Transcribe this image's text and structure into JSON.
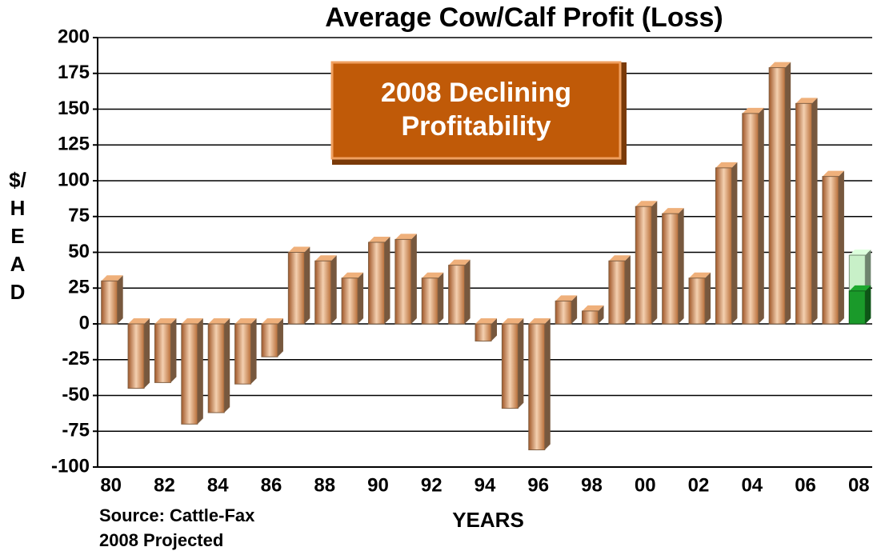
{
  "chart_data": {
    "type": "bar",
    "title": "Average Cow/Calf Profit (Loss)",
    "y_label": "$/HEAD",
    "x_label": "YEARS",
    "annotation": "2008 Declining Profitability",
    "notes": [
      "Source:  Cattle-Fax",
      "2008 Projected"
    ],
    "categories": [
      "80",
      null,
      "82",
      null,
      "84",
      null,
      "86",
      null,
      "88",
      null,
      "90",
      null,
      "92",
      null,
      "94",
      null,
      "96",
      null,
      "98",
      null,
      "00",
      null,
      "02",
      null,
      "04",
      null,
      "06",
      null,
      "08"
    ],
    "series": [
      {
        "color": "#d9a070",
        "values": [
          30,
          -45,
          -41,
          -70,
          -62,
          -42,
          -23,
          50,
          44,
          32,
          57,
          59,
          32,
          41,
          -12,
          -59,
          -88,
          16,
          9,
          44,
          82,
          77,
          32,
          109,
          147,
          179,
          154,
          103,
          null
        ]
      },
      {
        "color": "#c8f0c8",
        "values": [
          null,
          null,
          null,
          null,
          null,
          null,
          null,
          null,
          null,
          null,
          null,
          null,
          null,
          null,
          null,
          null,
          null,
          null,
          null,
          null,
          null,
          null,
          null,
          null,
          null,
          null,
          null,
          null,
          48
        ]
      },
      {
        "color": "#1a9a2a",
        "values": [
          null,
          null,
          null,
          null,
          null,
          null,
          null,
          null,
          null,
          null,
          null,
          null,
          null,
          null,
          null,
          null,
          null,
          null,
          null,
          null,
          null,
          null,
          null,
          null,
          null,
          null,
          null,
          null,
          23
        ]
      }
    ],
    "ylim": [
      -100,
      200
    ],
    "yticks": [
      -100,
      -75,
      -50,
      -25,
      0,
      25,
      50,
      75,
      100,
      125,
      150,
      175,
      200
    ],
    "grid": true
  }
}
